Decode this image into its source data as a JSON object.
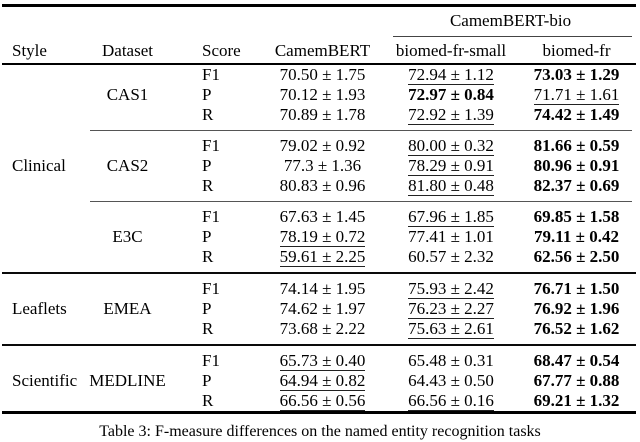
{
  "table": {
    "group_header": "CamemBERT-bio",
    "columns": [
      "Style",
      "Dataset",
      "Score",
      "CamemBERT",
      "biomed-fr-small",
      "biomed-fr"
    ],
    "sections": [
      {
        "style": "Clinical",
        "datasets": [
          {
            "name": "CAS1",
            "rows": [
              {
                "score": "F1",
                "values": [
                  {
                    "t": "70.50 ± 1.75"
                  },
                  {
                    "t": "72.94 ± 1.12",
                    "u": true
                  },
                  {
                    "t": "73.03 ± 1.29",
                    "b": true
                  }
                ]
              },
              {
                "score": "P",
                "values": [
                  {
                    "t": "70.12 ± 1.93"
                  },
                  {
                    "t": "72.97 ± 0.84",
                    "b": true
                  },
                  {
                    "t": "71.71 ± 1.61",
                    "u": true
                  }
                ]
              },
              {
                "score": "R",
                "values": [
                  {
                    "t": "70.89 ± 1.78"
                  },
                  {
                    "t": "72.92 ± 1.39",
                    "u": true
                  },
                  {
                    "t": "74.42 ± 1.49",
                    "b": true
                  }
                ]
              }
            ]
          },
          {
            "name": "CAS2",
            "rows": [
              {
                "score": "F1",
                "values": [
                  {
                    "t": "79.02 ± 0.92"
                  },
                  {
                    "t": "80.00 ± 0.32",
                    "u": true
                  },
                  {
                    "t": "81.66 ± 0.59",
                    "b": true
                  }
                ]
              },
              {
                "score": "P",
                "values": [
                  {
                    "t": "77.3 ± 1.36"
                  },
                  {
                    "t": "78.29 ± 0.91",
                    "u": true
                  },
                  {
                    "t": "80.96 ± 0.91",
                    "b": true
                  }
                ]
              },
              {
                "score": "R",
                "values": [
                  {
                    "t": "80.83 ± 0.96"
                  },
                  {
                    "t": "81.80 ± 0.48",
                    "u": true
                  },
                  {
                    "t": "82.37 ± 0.69",
                    "b": true
                  }
                ]
              }
            ]
          },
          {
            "name": "E3C",
            "rows": [
              {
                "score": "F1",
                "values": [
                  {
                    "t": "67.63 ± 1.45"
                  },
                  {
                    "t": "67.96 ± 1.85",
                    "u": true
                  },
                  {
                    "t": "69.85 ± 1.58",
                    "b": true
                  }
                ]
              },
              {
                "score": "P",
                "values": [
                  {
                    "t": "78.19 ± 0.72",
                    "u": true
                  },
                  {
                    "t": "77.41 ± 1.01"
                  },
                  {
                    "t": "79.11 ± 0.42",
                    "b": true
                  }
                ]
              },
              {
                "score": "R",
                "values": [
                  {
                    "t": "59.61 ± 2.25",
                    "u": true
                  },
                  {
                    "t": "60.57 ± 2.32"
                  },
                  {
                    "t": "62.56 ± 2.50",
                    "b": true
                  }
                ]
              }
            ]
          }
        ]
      },
      {
        "style": "Leaflets",
        "datasets": [
          {
            "name": "EMEA",
            "rows": [
              {
                "score": "F1",
                "values": [
                  {
                    "t": "74.14 ± 1.95"
                  },
                  {
                    "t": "75.93 ± 2.42",
                    "u": true
                  },
                  {
                    "t": "76.71 ± 1.50",
                    "b": true
                  }
                ]
              },
              {
                "score": "P",
                "values": [
                  {
                    "t": "74.62 ± 1.97"
                  },
                  {
                    "t": "76.23 ± 2.27",
                    "u": true
                  },
                  {
                    "t": "76.92 ± 1.96",
                    "b": true
                  }
                ]
              },
              {
                "score": "R",
                "values": [
                  {
                    "t": "73.68 ± 2.22"
                  },
                  {
                    "t": "75.63 ± 2.61",
                    "u": true
                  },
                  {
                    "t": "76.52 ± 1.62",
                    "b": true
                  }
                ]
              }
            ]
          }
        ]
      },
      {
        "style": "Scientific",
        "datasets": [
          {
            "name": "MEDLINE",
            "rows": [
              {
                "score": "F1",
                "values": [
                  {
                    "t": "65.73 ± 0.40",
                    "u": true
                  },
                  {
                    "t": "65.48 ± 0.31"
                  },
                  {
                    "t": "68.47 ± 0.54",
                    "b": true
                  }
                ]
              },
              {
                "score": "P",
                "values": [
                  {
                    "t": "64.94 ± 0.82",
                    "u": true
                  },
                  {
                    "t": "64.43 ± 0.50"
                  },
                  {
                    "t": "67.77 ± 0.88",
                    "b": true
                  }
                ]
              },
              {
                "score": "R",
                "values": [
                  {
                    "t": "66.56 ± 0.56",
                    "u": true
                  },
                  {
                    "t": "66.56 ± 0.16",
                    "u": true
                  },
                  {
                    "t": "69.21 ± 1.32",
                    "b": true
                  }
                ]
              }
            ]
          }
        ]
      }
    ]
  },
  "caption": "Table 3: F-measure differences on the named entity recognition tasks",
  "colors": {
    "text": "#000000",
    "rule": "#000000",
    "cmidrule": "#555555",
    "background": "#ffffff"
  }
}
